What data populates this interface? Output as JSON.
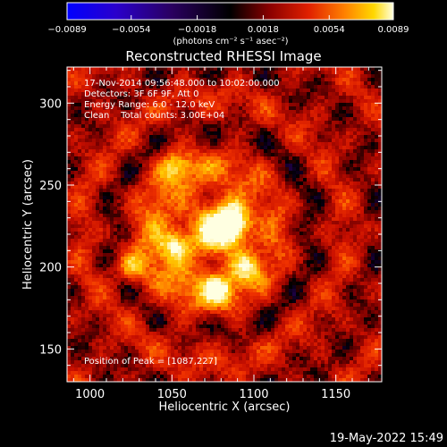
{
  "chart_data": {
    "type": "heatmap",
    "title": "Reconstructed RHESSI Image",
    "xlabel": "Heliocentric X (arcsec)",
    "ylabel": "Heliocentric Y (arcsec)",
    "xlim": [
      986,
      1178
    ],
    "ylim": [
      130,
      322
    ],
    "x_ticks": [
      1000,
      1050,
      1100,
      1150
    ],
    "y_ticks": [
      150,
      200,
      250,
      300
    ],
    "colorbar": {
      "ticks": [
        -0.0089,
        -0.0054,
        -0.0018,
        0.0018,
        0.0054,
        0.0089
      ],
      "tick_labels": [
        "−0.0089",
        "−0.0054",
        "−0.0018",
        "0.0018",
        "0.0054",
        "0.0089"
      ],
      "unit": "(photons cm⁻² s⁻¹ asec⁻²)",
      "range": [
        -0.0089,
        0.0089
      ]
    },
    "annotations": [
      "17-Nov-2014 09:56:48.000 to 10:02:00.000",
      "Detectors: 3F 6F 9F, Att 0",
      "Energy Range: 6.0 - 12.0 keV",
      "Clean    Total counts: 3.00E+04"
    ],
    "peak_label": "Position of Peak = [1087,227]",
    "peak": [
      1087,
      227
    ],
    "secondary_sources": [
      {
        "x": 1052,
        "y": 262,
        "level": 0.0055
      },
      {
        "x": 1025,
        "y": 200,
        "level": 0.006
      },
      {
        "x": 1052,
        "y": 213,
        "level": 0.0065
      },
      {
        "x": 1078,
        "y": 186,
        "level": 0.0062
      },
      {
        "x": 1095,
        "y": 200,
        "level": 0.0068
      }
    ]
  },
  "footer": {
    "timestamp": "19-May-2022 15:49"
  }
}
